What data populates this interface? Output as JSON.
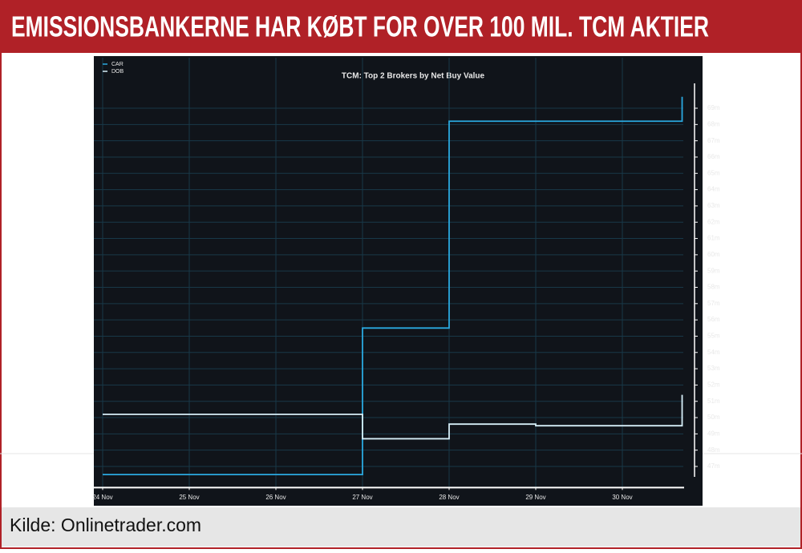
{
  "header": {
    "title": "EMISSIONSBANKERNE HAR KØBT FOR OVER 100 MIL. TCM AKTIER"
  },
  "chart_data": {
    "type": "line",
    "step": "post",
    "title": "TCM: Top 2 Brokers by Net Buy Value",
    "x": [
      0,
      3,
      4,
      5,
      6.69
    ],
    "xlim": [
      0,
      6.75
    ],
    "xticks": [
      {
        "value": 0,
        "label": "24 Nov"
      },
      {
        "value": 1,
        "label": "25 Nov"
      },
      {
        "value": 2,
        "label": "26 Nov"
      },
      {
        "value": 3,
        "label": "27 Nov"
      },
      {
        "value": 4,
        "label": "28 Nov"
      },
      {
        "value": 5,
        "label": "29 Nov"
      },
      {
        "value": 6,
        "label": "30 Nov"
      }
    ],
    "ylim": [
      45.7,
      70
    ],
    "yticks": [
      {
        "value": 47,
        "label": "47m"
      },
      {
        "value": 48,
        "label": "48m"
      },
      {
        "value": 49,
        "label": "49m"
      },
      {
        "value": 50,
        "label": "50m"
      },
      {
        "value": 51,
        "label": "51m"
      },
      {
        "value": 52,
        "label": "52m"
      },
      {
        "value": 53,
        "label": "53m"
      },
      {
        "value": 54,
        "label": "54m"
      },
      {
        "value": 55,
        "label": "55m"
      },
      {
        "value": 56,
        "label": "56m"
      },
      {
        "value": 57,
        "label": "57m"
      },
      {
        "value": 58,
        "label": "58m"
      },
      {
        "value": 59,
        "label": "59m"
      },
      {
        "value": 60,
        "label": "60m"
      },
      {
        "value": 61,
        "label": "61m"
      },
      {
        "value": 62,
        "label": "62m"
      },
      {
        "value": 63,
        "label": "63m"
      },
      {
        "value": 64,
        "label": "64m"
      },
      {
        "value": 65,
        "label": "65m"
      },
      {
        "value": 66,
        "label": "66m"
      },
      {
        "value": 67,
        "label": "67m"
      },
      {
        "value": 68,
        "label": "68m"
      },
      {
        "value": 69,
        "label": "69m"
      }
    ],
    "grid": true,
    "legend": "upper left",
    "series": [
      {
        "name": "CAR",
        "color": "#2aa9e0",
        "values": [
          46.5,
          55.5,
          68.2,
          68.2,
          69.7
        ]
      },
      {
        "name": "DOB",
        "color": "#d6eef8",
        "values": [
          50.2,
          48.7,
          49.6,
          49.5,
          51.4
        ]
      }
    ]
  },
  "footer": {
    "source": "Kilde: Onlinetrader.com"
  }
}
